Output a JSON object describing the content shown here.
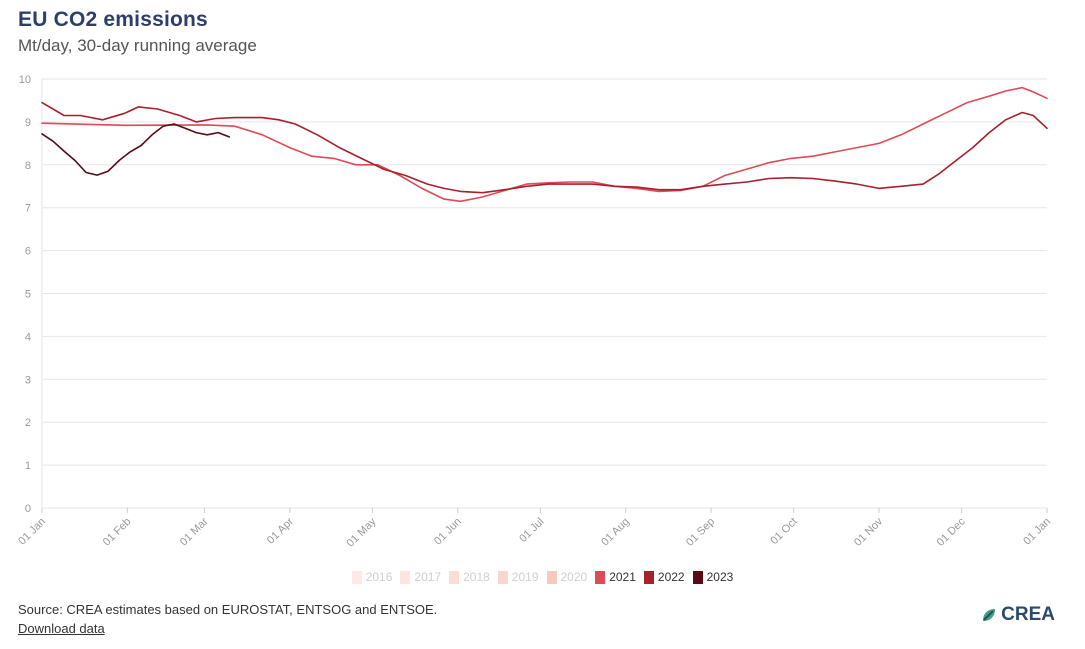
{
  "header": {
    "title": "EU CO2 emissions",
    "subtitle": "Mt/day, 30-day running average"
  },
  "footer": {
    "source": "Source: CREA estimates based on EUROSTAT, ENTSOG and ENTSOE.",
    "download_label": "Download data",
    "brand": "CREA"
  },
  "colors": {
    "grid": "#e6e6e6",
    "axis_text": "#999999",
    "y2016": "#fde9e5",
    "y2017": "#fde5df",
    "y2018": "#fcdcd4",
    "y2019": "#fbd6cc",
    "y2020": "#f8c9bd",
    "y2021": "#de4a55",
    "y2022": "#a91f2c",
    "y2023": "#5a0a14"
  },
  "chart_data": {
    "type": "line",
    "title": "EU CO2 emissions",
    "subtitle": "Mt/day, 30-day running average",
    "xlabel": "",
    "ylabel": "",
    "ylim": [
      0,
      10
    ],
    "y_ticks": [
      "0",
      "1",
      "2",
      "3",
      "4",
      "5",
      "6",
      "7",
      "8",
      "9",
      "10"
    ],
    "x_ticks": [
      "01 Jan",
      "01 Feb",
      "01 Mar",
      "01 Apr",
      "01 May",
      "01 Jun",
      "01 Jul",
      "01 Aug",
      "01 Sep",
      "01 Oct",
      "01 Nov",
      "01 Dec",
      "01 Jan"
    ],
    "x_tick_days": [
      0,
      31,
      59,
      90,
      120,
      151,
      181,
      212,
      243,
      273,
      304,
      334,
      365
    ],
    "x_domain_days": [
      0,
      365
    ],
    "grid": true,
    "legend": "bottom-center",
    "series": [
      {
        "name": "2016",
        "active": false,
        "color_key": "y2016",
        "x": [],
        "y": []
      },
      {
        "name": "2017",
        "active": false,
        "color_key": "y2017",
        "x": [],
        "y": []
      },
      {
        "name": "2018",
        "active": false,
        "color_key": "y2018",
        "x": [],
        "y": []
      },
      {
        "name": "2019",
        "active": false,
        "color_key": "y2019",
        "x": [],
        "y": []
      },
      {
        "name": "2020",
        "active": false,
        "color_key": "y2020",
        "x": [],
        "y": []
      },
      {
        "name": "2021",
        "active": true,
        "color_key": "y2021",
        "x": [
          0,
          30,
          60,
          70,
          80,
          90,
          98,
          106,
          114,
          122,
          130,
          138,
          146,
          152,
          160,
          168,
          176,
          184,
          192,
          200,
          208,
          216,
          224,
          232,
          240,
          248,
          256,
          264,
          272,
          280,
          288,
          296,
          304,
          312,
          320,
          328,
          336,
          344,
          350,
          356,
          360,
          365
        ],
        "y": [
          8.97,
          8.92,
          8.93,
          8.9,
          8.7,
          8.4,
          8.2,
          8.15,
          8.0,
          8.0,
          7.75,
          7.45,
          7.2,
          7.15,
          7.25,
          7.4,
          7.55,
          7.58,
          7.6,
          7.6,
          7.5,
          7.45,
          7.38,
          7.4,
          7.5,
          7.75,
          7.9,
          8.05,
          8.15,
          8.2,
          8.3,
          8.4,
          8.5,
          8.7,
          8.95,
          9.2,
          9.45,
          9.6,
          9.72,
          9.8,
          9.7,
          9.55
        ]
      },
      {
        "name": "2022",
        "active": true,
        "color_key": "y2022",
        "x": [
          0,
          8,
          14,
          22,
          30,
          35,
          42,
          50,
          56,
          63,
          70,
          80,
          86,
          92,
          100,
          108,
          116,
          124,
          132,
          140,
          146,
          152,
          160,
          168,
          176,
          184,
          192,
          200,
          208,
          216,
          224,
          232,
          240,
          248,
          256,
          264,
          272,
          280,
          288,
          296,
          304,
          312,
          320,
          326,
          332,
          338,
          344,
          350,
          356,
          360,
          365
        ],
        "y": [
          9.45,
          9.15,
          9.15,
          9.05,
          9.2,
          9.35,
          9.3,
          9.15,
          9.0,
          9.08,
          9.1,
          9.1,
          9.05,
          8.95,
          8.7,
          8.4,
          8.15,
          7.9,
          7.75,
          7.55,
          7.45,
          7.38,
          7.35,
          7.42,
          7.5,
          7.55,
          7.55,
          7.55,
          7.5,
          7.48,
          7.42,
          7.42,
          7.5,
          7.55,
          7.6,
          7.68,
          7.7,
          7.68,
          7.62,
          7.55,
          7.45,
          7.5,
          7.55,
          7.8,
          8.1,
          8.4,
          8.75,
          9.05,
          9.22,
          9.15,
          8.85
        ]
      },
      {
        "name": "2023",
        "active": true,
        "color_key": "y2023",
        "x": [
          0,
          4,
          8,
          12,
          16,
          20,
          24,
          28,
          32,
          36,
          40,
          44,
          48,
          52,
          56,
          60,
          64,
          68
        ],
        "y": [
          8.72,
          8.55,
          8.32,
          8.1,
          7.82,
          7.76,
          7.85,
          8.1,
          8.3,
          8.45,
          8.7,
          8.9,
          8.95,
          8.85,
          8.75,
          8.7,
          8.75,
          8.65
        ]
      }
    ]
  }
}
